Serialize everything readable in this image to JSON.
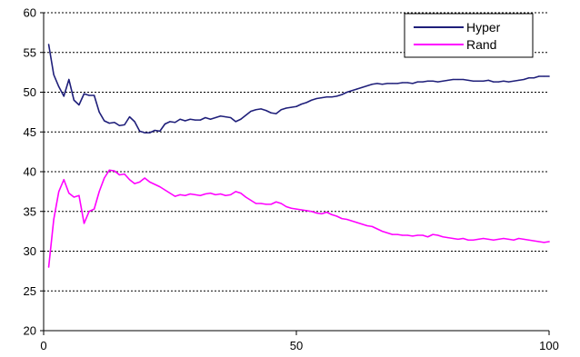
{
  "chart_data": {
    "type": "line",
    "title": "",
    "xlabel": "",
    "ylabel": "",
    "xlim": [
      0,
      100
    ],
    "ylim": [
      20,
      60
    ],
    "x_ticks": [
      0,
      50,
      100
    ],
    "y_ticks": [
      20,
      25,
      30,
      35,
      40,
      45,
      50,
      55,
      60
    ],
    "grid": "horizontal dotted",
    "legend_position": "top-right",
    "series": [
      {
        "name": "Hyper",
        "color": "#1f1f7a",
        "x": [
          1,
          2,
          3,
          4,
          5,
          6,
          7,
          8,
          9,
          10,
          11,
          12,
          13,
          14,
          15,
          16,
          17,
          18,
          19,
          20,
          21,
          22,
          23,
          24,
          25,
          26,
          27,
          28,
          29,
          30,
          31,
          32,
          33,
          34,
          35,
          36,
          37,
          38,
          39,
          40,
          41,
          42,
          43,
          44,
          45,
          46,
          47,
          48,
          49,
          50,
          51,
          52,
          53,
          54,
          55,
          56,
          57,
          58,
          59,
          60,
          61,
          62,
          63,
          64,
          65,
          66,
          67,
          68,
          69,
          70,
          71,
          72,
          73,
          74,
          75,
          76,
          77,
          78,
          79,
          80,
          81,
          82,
          83,
          84,
          85,
          86,
          87,
          88,
          89,
          90,
          91,
          92,
          93,
          94,
          95,
          96,
          97,
          98,
          99,
          100
        ],
        "values": [
          56.0,
          52.2,
          50.7,
          49.5,
          51.6,
          49.0,
          48.4,
          49.8,
          49.6,
          49.6,
          47.5,
          46.4,
          46.1,
          46.2,
          45.8,
          45.9,
          46.9,
          46.3,
          45.1,
          44.9,
          44.9,
          45.2,
          45.1,
          46.0,
          46.3,
          46.2,
          46.6,
          46.4,
          46.6,
          46.5,
          46.5,
          46.8,
          46.6,
          46.8,
          47.0,
          46.9,
          46.8,
          46.3,
          46.6,
          47.1,
          47.6,
          47.8,
          47.9,
          47.7,
          47.4,
          47.3,
          47.8,
          48.0,
          48.1,
          48.2,
          48.5,
          48.7,
          49.0,
          49.2,
          49.3,
          49.4,
          49.4,
          49.5,
          49.7,
          50.0,
          50.2,
          50.4,
          50.6,
          50.8,
          51.0,
          51.1,
          51.0,
          51.1,
          51.1,
          51.1,
          51.2,
          51.2,
          51.1,
          51.3,
          51.3,
          51.4,
          51.4,
          51.3,
          51.4,
          51.5,
          51.6,
          51.6,
          51.6,
          51.5,
          51.4,
          51.4,
          51.4,
          51.5,
          51.3,
          51.3,
          51.4,
          51.3,
          51.4,
          51.5,
          51.6,
          51.8,
          51.8,
          52.0,
          52.0,
          52.0
        ]
      },
      {
        "name": "Rand",
        "color": "#ff00ff",
        "x": [
          1,
          2,
          3,
          4,
          5,
          6,
          7,
          8,
          9,
          10,
          11,
          12,
          13,
          14,
          15,
          16,
          17,
          18,
          19,
          20,
          21,
          22,
          23,
          24,
          25,
          26,
          27,
          28,
          29,
          30,
          31,
          32,
          33,
          34,
          35,
          36,
          37,
          38,
          39,
          40,
          41,
          42,
          43,
          44,
          45,
          46,
          47,
          48,
          49,
          50,
          51,
          52,
          53,
          54,
          55,
          56,
          57,
          58,
          59,
          60,
          61,
          62,
          63,
          64,
          65,
          66,
          67,
          68,
          69,
          70,
          71,
          72,
          73,
          74,
          75,
          76,
          77,
          78,
          79,
          80,
          81,
          82,
          83,
          84,
          85,
          86,
          87,
          88,
          89,
          90,
          91,
          92,
          93,
          94,
          95,
          96,
          97,
          98,
          99,
          100
        ],
        "values": [
          28.0,
          34.0,
          37.5,
          39.0,
          37.3,
          36.8,
          37.0,
          33.5,
          35.0,
          35.3,
          37.5,
          39.2,
          40.2,
          40.1,
          39.6,
          39.7,
          39.0,
          38.5,
          38.7,
          39.2,
          38.7,
          38.4,
          38.1,
          37.7,
          37.3,
          36.9,
          37.1,
          37.0,
          37.2,
          37.1,
          37.0,
          37.2,
          37.3,
          37.1,
          37.2,
          37.0,
          37.1,
          37.5,
          37.3,
          36.8,
          36.4,
          36.0,
          36.0,
          35.9,
          35.9,
          36.2,
          36.0,
          35.6,
          35.4,
          35.3,
          35.2,
          35.1,
          35.0,
          34.8,
          34.7,
          34.9,
          34.6,
          34.4,
          34.1,
          34.0,
          33.8,
          33.6,
          33.4,
          33.2,
          33.1,
          32.8,
          32.5,
          32.3,
          32.1,
          32.1,
          32.0,
          32.0,
          31.9,
          32.0,
          32.0,
          31.8,
          32.1,
          32.0,
          31.8,
          31.7,
          31.6,
          31.5,
          31.6,
          31.4,
          31.4,
          31.5,
          31.6,
          31.5,
          31.4,
          31.5,
          31.6,
          31.5,
          31.4,
          31.6,
          31.5,
          31.4,
          31.3,
          31.2,
          31.1,
          31.2
        ]
      }
    ]
  }
}
